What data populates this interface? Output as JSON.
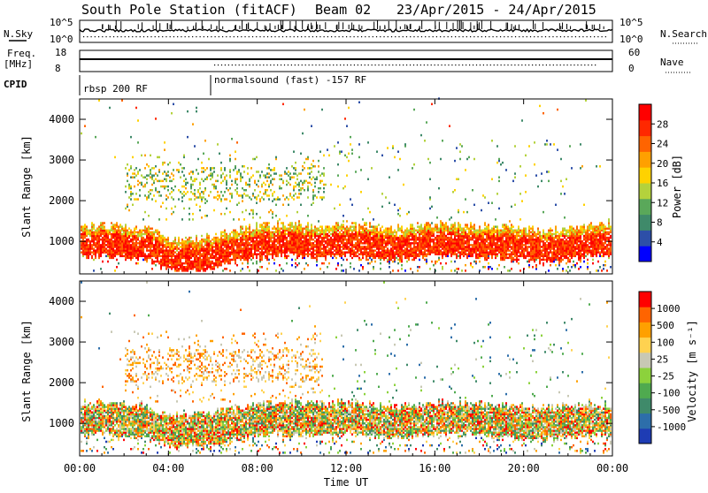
{
  "header": {
    "station": "South Pole Station (fitACF)",
    "beam": "Beam 02",
    "date_range": "23/Apr/2015 - 24/Apr/2015"
  },
  "param_panels": {
    "nsky_label": "N.Sky",
    "nsky_ticks": [
      "10^5",
      "10^0"
    ],
    "nsearch_label": "N.Search",
    "nsearch_ticks": [
      "10^5",
      "10^0"
    ],
    "freq_label_1": "Freq.",
    "freq_label_2": "[MHz]",
    "freq_ticks": [
      "18",
      "8"
    ],
    "nave_label": "Nave",
    "nave_ticks": [
      "60",
      "0"
    ],
    "cpid_label": "CPID",
    "cpid_segments": [
      {
        "label": "rbsp 200 RF",
        "start_hour": 0
      },
      {
        "label": "normalsound (fast) -157 RF",
        "start_hour": 5.9
      }
    ]
  },
  "chart_data": [
    {
      "type": "heatmap",
      "name": "power",
      "ylabel": "Slant Range [km]",
      "yticks": [
        1000,
        2000,
        3000,
        4000
      ],
      "ylim": [
        200,
        4500
      ],
      "colorbar_label": "Power [dB]",
      "colorbar_ticks": [
        "28",
        "24",
        "20",
        "16",
        "12",
        "8",
        "4"
      ],
      "colors": [
        "#0000ff",
        "#2d4fa8",
        "#3f8a6a",
        "#5aa85a",
        "#b4d23c",
        "#ffd200",
        "#ffa000",
        "#ff6400",
        "#ff2800",
        "#ff0000"
      ],
      "main_band_km": [
        [
          0,
          1000
        ],
        [
          1,
          1050
        ],
        [
          2,
          1000
        ],
        [
          3,
          950
        ],
        [
          4,
          700
        ],
        [
          5,
          650
        ],
        [
          6,
          750
        ],
        [
          7,
          900
        ],
        [
          8,
          1000
        ],
        [
          9,
          1050
        ],
        [
          10,
          1050
        ],
        [
          11,
          1000
        ],
        [
          12,
          1050
        ],
        [
          13,
          1000
        ],
        [
          14,
          950
        ],
        [
          15,
          1000
        ],
        [
          16,
          1050
        ],
        [
          17,
          1050
        ],
        [
          18,
          1000
        ],
        [
          19,
          1000
        ],
        [
          20,
          950
        ],
        [
          21,
          900
        ],
        [
          22,
          950
        ],
        [
          23,
          1050
        ],
        [
          24,
          1100
        ]
      ]
    },
    {
      "type": "heatmap",
      "name": "velocity",
      "ylabel": "Slant Range [km]",
      "yticks": [
        1000,
        2000,
        3000,
        4000
      ],
      "ylim": [
        200,
        4500
      ],
      "colorbar_label": "Velocity [m s⁻¹]",
      "colorbar_ticks": [
        "1000",
        "500",
        "100",
        "25",
        "-25",
        "-100",
        "-500",
        "-1000"
      ],
      "colors": [
        "#1e3cb4",
        "#2d6eaa",
        "#3f8a6a",
        "#4faa4f",
        "#8cd23c",
        "#c8c8b4",
        "#ffd250",
        "#ffa000",
        "#ff6400",
        "#ff0000"
      ],
      "main_band_km": [
        [
          0,
          1150
        ],
        [
          1,
          1150
        ],
        [
          2,
          1100
        ],
        [
          3,
          1050
        ],
        [
          4,
          850
        ],
        [
          5,
          850
        ],
        [
          6,
          900
        ],
        [
          7,
          1000
        ],
        [
          8,
          1100
        ],
        [
          9,
          1150
        ],
        [
          10,
          1150
        ],
        [
          11,
          1100
        ],
        [
          12,
          1150
        ],
        [
          13,
          1100
        ],
        [
          14,
          1050
        ],
        [
          15,
          1100
        ],
        [
          16,
          1150
        ],
        [
          17,
          1150
        ],
        [
          18,
          1100
        ],
        [
          19,
          1050
        ],
        [
          20,
          1050
        ],
        [
          21,
          1000
        ],
        [
          22,
          1050
        ],
        [
          23,
          1100
        ],
        [
          24,
          1100
        ]
      ]
    }
  ],
  "time_axis": {
    "xlabel": "Time UT",
    "ticks": [
      "00:00",
      "04:00",
      "08:00",
      "12:00",
      "16:00",
      "20:00",
      "00:00"
    ],
    "xlim_hours": [
      0,
      24
    ]
  }
}
